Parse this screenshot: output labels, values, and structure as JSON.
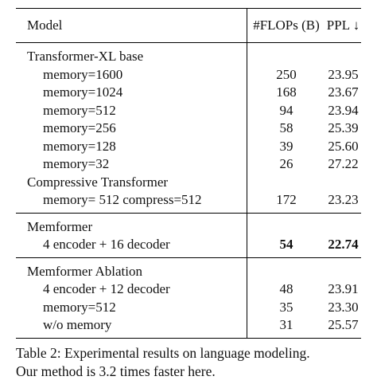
{
  "table": {
    "headers": [
      "Model",
      "#FLOPs (B)",
      "PPL ↓"
    ],
    "groups": [
      {
        "title": "Transformer-XL base",
        "rows": [
          {
            "label": "memory=1600",
            "flops": "250",
            "ppl": "23.95"
          },
          {
            "label": "memory=1024",
            "flops": "168",
            "ppl": "23.67"
          },
          {
            "label": "memory=512",
            "flops": "94",
            "ppl": "23.94"
          },
          {
            "label": "memory=256",
            "flops": "58",
            "ppl": "25.39"
          },
          {
            "label": "memory=128",
            "flops": "39",
            "ppl": "25.60"
          },
          {
            "label": "memory=32",
            "flops": "26",
            "ppl": "27.22"
          }
        ]
      },
      {
        "title": "Compressive Transformer",
        "rows": [
          {
            "label": "memory= 512 compress=512",
            "flops": "172",
            "ppl": "23.23"
          }
        ]
      },
      {
        "title": "Memformer",
        "rows": [
          {
            "label": "4 encoder + 16 decoder",
            "flops": "54",
            "ppl": "22.74",
            "bold": true
          }
        ]
      },
      {
        "title": "Memformer Ablation",
        "rows": [
          {
            "label": "4 encoder + 12 decoder",
            "flops": "48",
            "ppl": "23.91"
          },
          {
            "label": "memory=512",
            "flops": "35",
            "ppl": "23.30"
          },
          {
            "label": "w/o memory",
            "flops": "31",
            "ppl": "25.57"
          }
        ]
      }
    ]
  },
  "caption": {
    "line1": "Table 2: Experimental results on language modeling.",
    "line2": "Our method is 3.2 times faster here."
  }
}
